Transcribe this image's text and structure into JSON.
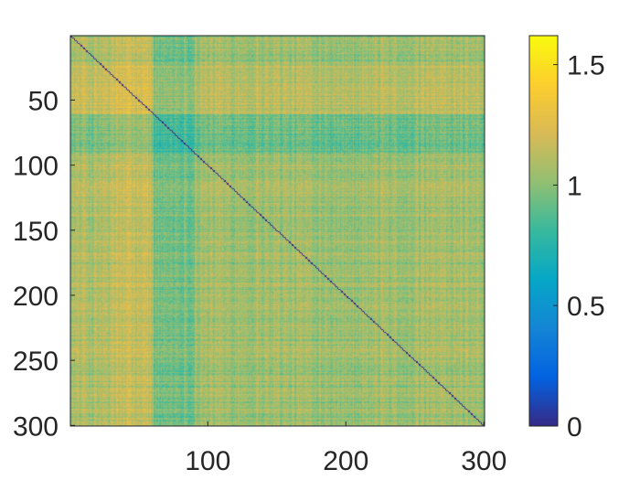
{
  "chart_data": {
    "type": "heatmap",
    "title": "",
    "xlabel": "",
    "ylabel": "",
    "n": 300,
    "xlim": [
      1,
      300
    ],
    "ylim": [
      1,
      300
    ],
    "y_direction": "reversed",
    "x_ticks": [
      100,
      200,
      300
    ],
    "x_tick_labels": [
      "100",
      "200",
      "300"
    ],
    "y_ticks": [
      50,
      100,
      150,
      200,
      250,
      300
    ],
    "y_tick_labels": [
      "50",
      "100",
      "150",
      "200",
      "250",
      "300"
    ],
    "diagonal_value": 0,
    "typical_value_range": [
      0.8,
      1.4
    ],
    "colormap": "parula",
    "colorbar": {
      "limits": [
        0,
        1.62
      ],
      "ticks": [
        0,
        0.5,
        1,
        1.5
      ],
      "tick_labels": [
        "0",
        "0.5",
        "1",
        "1.5"
      ],
      "placement": "right"
    },
    "colormap_stops": [
      "#352a87",
      "#0363e1",
      "#1485d4",
      "#06a7c6",
      "#38b99e",
      "#92bf73",
      "#d9ba56",
      "#fcce2e",
      "#f9fb0e"
    ],
    "row_segments": [
      {
        "rows": [
          1,
          23
        ],
        "mean": 1.05
      },
      {
        "rows": [
          24,
          60
        ],
        "mean": 1.18
      },
      {
        "rows": [
          61,
          90
        ],
        "mean": 0.82
      },
      {
        "rows": [
          91,
          300
        ],
        "mean": 1.05
      }
    ],
    "col_segments": [
      {
        "cols": [
          1,
          30
        ],
        "mean": 1.12
      },
      {
        "cols": [
          31,
          60
        ],
        "mean": 1.25
      },
      {
        "cols": [
          61,
          90
        ],
        "mean": 0.85
      },
      {
        "cols": [
          91,
          300
        ],
        "mean": 1.05
      }
    ]
  }
}
